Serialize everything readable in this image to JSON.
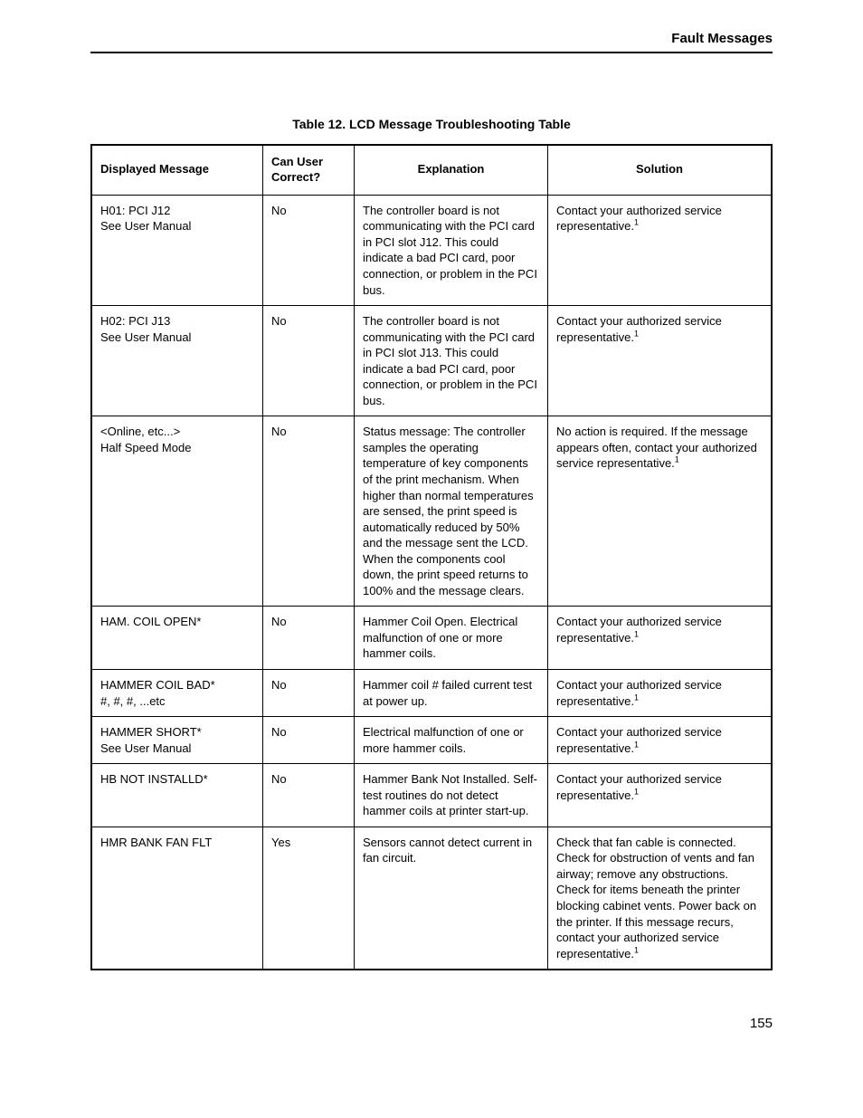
{
  "header": {
    "section_title": "Fault Messages"
  },
  "table": {
    "title": "Table 12. LCD Message Troubleshooting Table",
    "columns": {
      "displayed_message": "Displayed Message",
      "can_user_correct": "Can User Correct?",
      "explanation": "Explanation",
      "solution": "Solution"
    },
    "rows": [
      {
        "message": "H01: PCI J12\nSee User Manual",
        "user": "No",
        "explanation": "The controller board is not communicating with the PCI card in PCI slot J12. This could indicate a bad PCI card, poor connection, or problem in the PCI bus.",
        "solution": "Contact your authorized service representative.",
        "solution_footnote": "1"
      },
      {
        "message": "H02: PCI J13\nSee User Manual",
        "user": "No",
        "explanation": "The controller board is not communicating with the PCI card in PCI slot J13. This could indicate a bad PCI card, poor connection, or problem in the PCI bus.",
        "solution": "Contact your authorized service representative.",
        "solution_footnote": "1"
      },
      {
        "message": "<Online, etc...>\nHalf Speed Mode",
        "user": "No",
        "explanation": "Status message: The controller samples the operating temperature of key components of the print mechanism. When higher than normal temperatures are sensed, the print speed is automatically reduced by 50% and the message sent the LCD. When the components cool down, the print speed returns to 100% and the message clears.",
        "solution": "No action is required. If the message appears often, contact your authorized service representative.",
        "solution_footnote": "1"
      },
      {
        "message": "HAM. COIL OPEN*",
        "user": "No",
        "explanation": "Hammer Coil Open. Electrical malfunction of one or more hammer coils.",
        "solution": "Contact your authorized service representative.",
        "solution_footnote": "1"
      },
      {
        "message": "HAMMER COIL BAD*\n#, #, #, ...etc",
        "user": "No",
        "explanation": "Hammer coil # failed current test at power up.",
        "solution": "Contact your authorized service representative.",
        "solution_footnote": "1"
      },
      {
        "message": "HAMMER SHORT*\nSee User Manual",
        "user": "No",
        "explanation": "Electrical malfunction of one or more hammer coils.",
        "solution": "Contact your authorized service representative.",
        "solution_footnote": "1"
      },
      {
        "message": "HB NOT INSTALLD*",
        "user": "No",
        "explanation": "Hammer Bank Not Installed. Self-test routines do not detect hammer coils at printer start-up.",
        "solution": "Contact your authorized service representative.",
        "solution_footnote": "1"
      },
      {
        "message": "HMR BANK FAN FLT",
        "user": "Yes",
        "explanation": "Sensors cannot detect current in fan circuit.",
        "solution": "Check that fan cable is connected. Check for obstruction of vents and fan airway; remove any obstructions. Check for items beneath the printer blocking cabinet vents. Power back on the printer. If this message recurs, contact your authorized service representative.",
        "solution_footnote": "1"
      }
    ]
  },
  "page_number": "155",
  "style": {
    "font_family": "Arial, Helvetica, sans-serif",
    "background_color": "#ffffff",
    "text_color": "#000000",
    "border_color": "#000000",
    "header_font_size": 15,
    "title_font_size": 14,
    "cell_font_size": 13,
    "footnote_font_size": 9,
    "col_widths": {
      "message": 170,
      "user": 82,
      "explanation": 195
    }
  }
}
